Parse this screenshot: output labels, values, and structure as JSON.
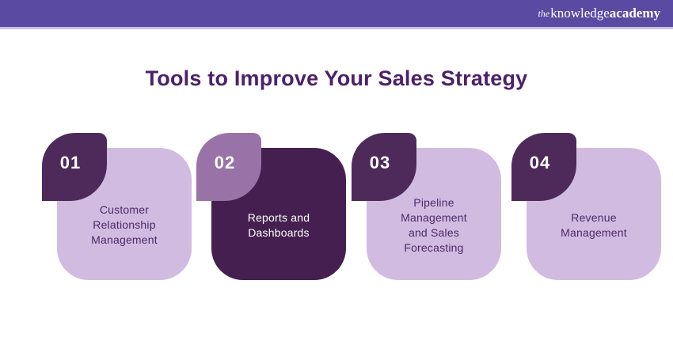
{
  "header": {
    "logo_the": "the",
    "logo_knowledge": "knowledge",
    "logo_academy": "academy"
  },
  "title": "Tools to Improve Your Sales Strategy",
  "cards": [
    {
      "number": "01",
      "label": "Customer\nRelationship\nManagement"
    },
    {
      "number": "02",
      "label": "Reports and\nDashboards"
    },
    {
      "number": "03",
      "label": "Pipeline\nManagement\nand Sales\nForecasting"
    },
    {
      "number": "04",
      "label": "Revenue\nManagement"
    }
  ],
  "colors": {
    "header_bar": "#5b4aa1",
    "header_underline": "#cac1e4",
    "title_text": "#4d2169",
    "card_light": "#d2bbe1",
    "card_dark": "#451f50",
    "badge_dark": "#4e2a5b",
    "badge_mauve": "#9973a8",
    "label_on_light": "#4b2a66",
    "label_on_dark": "#ffffff"
  }
}
